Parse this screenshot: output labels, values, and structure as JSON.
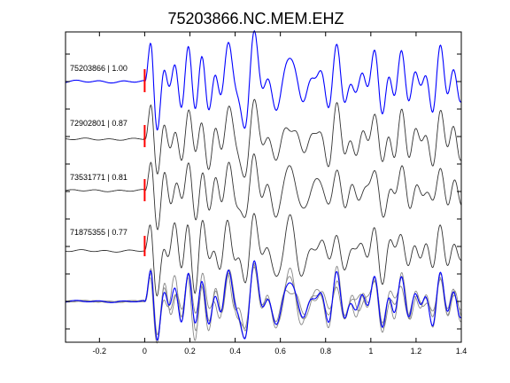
{
  "chart_data": {
    "type": "line",
    "title": "75203866.NC.MEM.EHZ",
    "xlabel": "",
    "ylabel": "",
    "xlim": [
      -0.35,
      1.4
    ],
    "x_ticks": [
      -0.2,
      0,
      0.2,
      0.4,
      0.6,
      0.8,
      1,
      1.2,
      1.4
    ],
    "x_tick_labels": [
      "-0.2",
      "0",
      "0.2",
      "0.4",
      "0.6",
      "0.8",
      "1",
      "1.2",
      "1.4"
    ],
    "grid": false,
    "pick_time": 0,
    "colors": {
      "reference": "#0000ff",
      "match": "#333333",
      "overlay_match": "#888888",
      "pick": "#ff0000",
      "axes": "#000000"
    },
    "traces": [
      {
        "name": "75203866",
        "label": "75203866 | 1.00",
        "cc": 1.0,
        "color": "#0000ff"
      },
      {
        "name": "72902801",
        "label": "72902801 | 0.87",
        "cc": 0.87,
        "color": "#333333"
      },
      {
        "name": "73531771",
        "label": "73531771 | 0.81",
        "cc": 0.81,
        "color": "#333333"
      },
      {
        "name": "71875355",
        "label": "71875355 | 0.77",
        "cc": 0.77,
        "color": "#333333"
      }
    ],
    "has_overlay_panel": true
  }
}
